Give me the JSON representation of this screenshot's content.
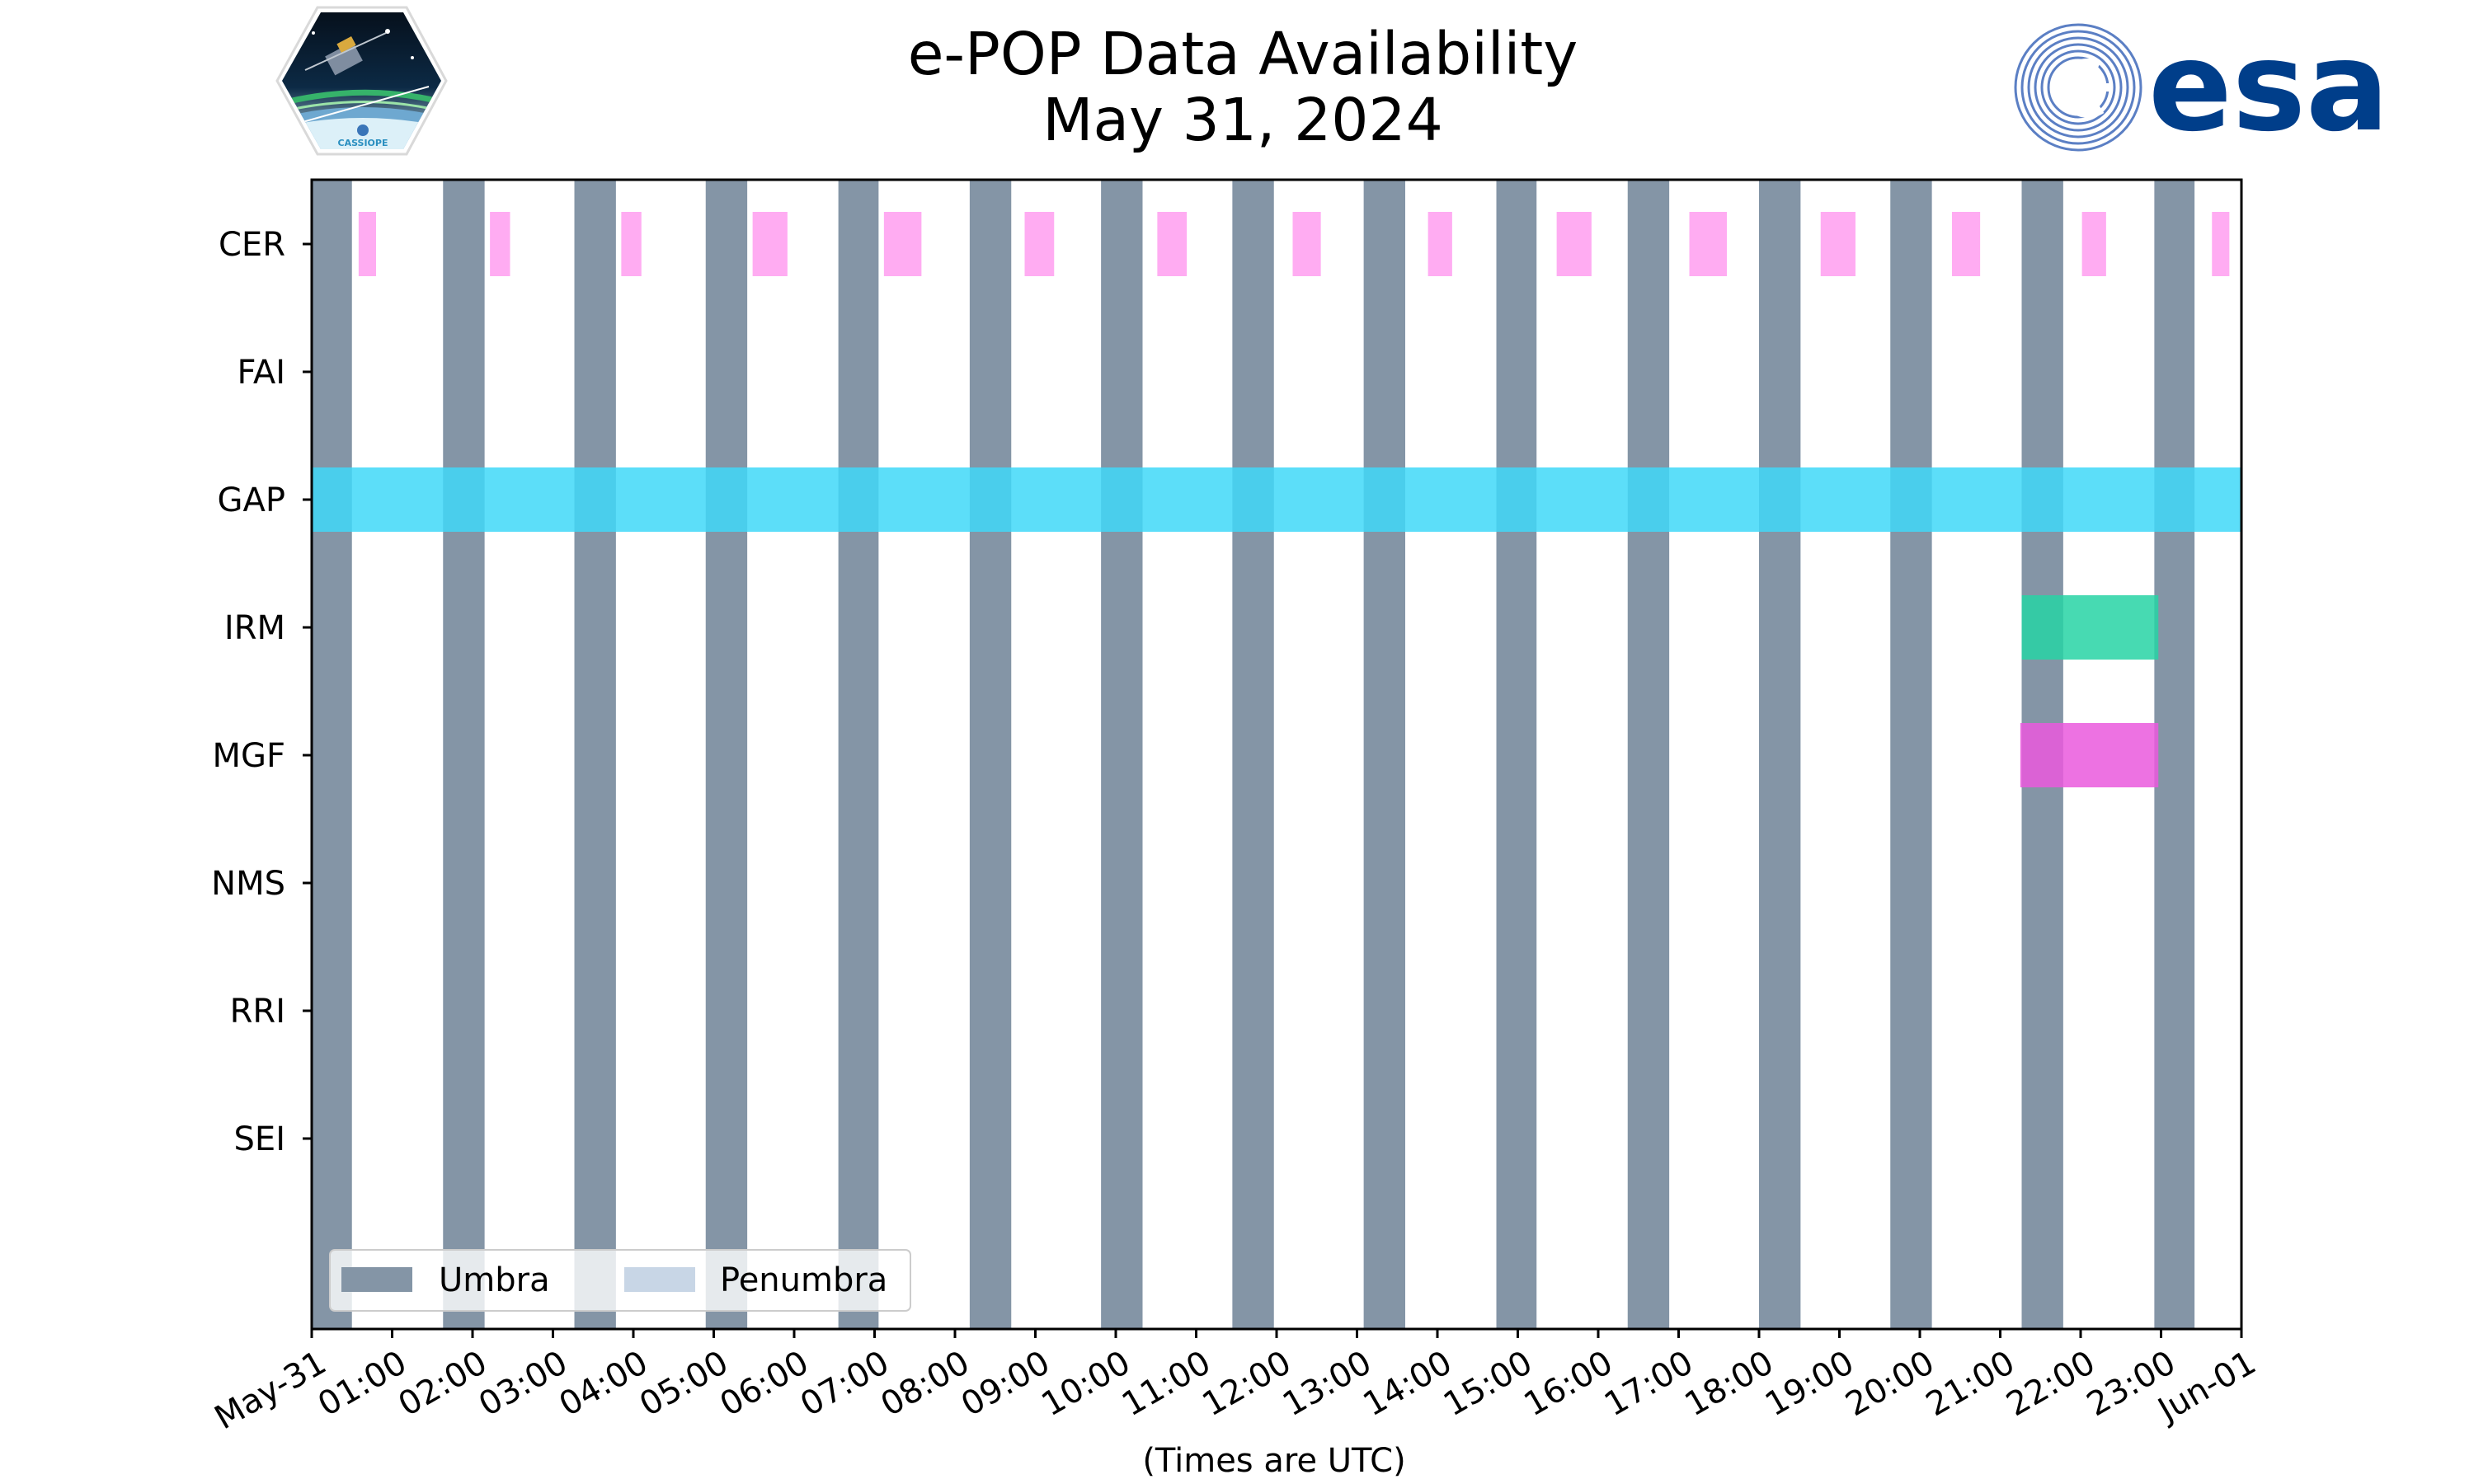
{
  "chart_data": {
    "type": "timeline",
    "title": "e-POP Data Availability",
    "subtitle": "May 31, 2024",
    "xlabel": "(Times are UTC)",
    "x_range": [
      "2024-05-31 00:00",
      "2024-06-01 00:00"
    ],
    "x_tick_labels": [
      "May-31",
      "01:00",
      "02:00",
      "03:00",
      "04:00",
      "05:00",
      "06:00",
      "07:00",
      "08:00",
      "09:00",
      "10:00",
      "11:00",
      "12:00",
      "13:00",
      "14:00",
      "15:00",
      "16:00",
      "17:00",
      "18:00",
      "19:00",
      "20:00",
      "21:00",
      "22:00",
      "23:00",
      "Jun-01"
    ],
    "categories": [
      "CER",
      "FAI",
      "GAP",
      "IRM",
      "MGF",
      "NMS",
      "RRI",
      "SEI"
    ],
    "legend": {
      "placement": "lower-left",
      "entries": [
        {
          "label": "Umbra",
          "color": "#8495a6"
        },
        {
          "label": "Penumbra",
          "color": "#c8d6e6"
        }
      ]
    },
    "umbra_intervals": [
      [
        "00:00",
        "00:30"
      ],
      [
        "01:38",
        "02:09"
      ],
      [
        "03:16",
        "03:47"
      ],
      [
        "04:54",
        "05:25"
      ],
      [
        "06:33",
        "07:03"
      ],
      [
        "08:11",
        "08:42"
      ],
      [
        "09:49",
        "10:20"
      ],
      [
        "11:27",
        "11:58"
      ],
      [
        "13:05",
        "13:36"
      ],
      [
        "14:44",
        "15:14"
      ],
      [
        "16:22",
        "16:53"
      ],
      [
        "18:00",
        "18:31"
      ],
      [
        "19:38",
        "20:09"
      ],
      [
        "21:16",
        "21:47"
      ],
      [
        "22:55",
        "23:25"
      ]
    ],
    "series": [
      {
        "name": "CER",
        "color": "#ff9ef0",
        "intervals": [
          [
            "00:35",
            "00:48"
          ],
          [
            "02:13",
            "02:28"
          ],
          [
            "03:51",
            "04:06"
          ],
          [
            "05:29",
            "05:55"
          ],
          [
            "07:07",
            "07:35"
          ],
          [
            "08:52",
            "09:14"
          ],
          [
            "10:31",
            "10:53"
          ],
          [
            "12:12",
            "12:33"
          ],
          [
            "13:53",
            "14:11"
          ],
          [
            "15:29",
            "15:55"
          ],
          [
            "17:08",
            "17:36"
          ],
          [
            "18:46",
            "19:12"
          ],
          [
            "20:24",
            "20:45"
          ],
          [
            "22:01",
            "22:19"
          ],
          [
            "23:38",
            "23:51"
          ]
        ]
      },
      {
        "name": "FAI",
        "color": "#ff9ef0",
        "intervals": []
      },
      {
        "name": "GAP",
        "color": "#3fd8f8",
        "intervals": [
          [
            "00:00",
            "24:00"
          ]
        ]
      },
      {
        "name": "IRM",
        "color": "#27d3a4",
        "intervals": [
          [
            "21:16",
            "22:58"
          ]
        ]
      },
      {
        "name": "MGF",
        "color": "#ea59dd",
        "intervals": [
          [
            "21:15",
            "22:58"
          ]
        ]
      },
      {
        "name": "NMS",
        "color": "#ff9ef0",
        "intervals": []
      },
      {
        "name": "RRI",
        "color": "#ff9ef0",
        "intervals": []
      },
      {
        "name": "SEI",
        "color": "#ff9ef0",
        "intervals": []
      }
    ],
    "grid": false
  },
  "logos": {
    "esa_text": "esa",
    "cassiope_text": "CASSIOPE"
  }
}
